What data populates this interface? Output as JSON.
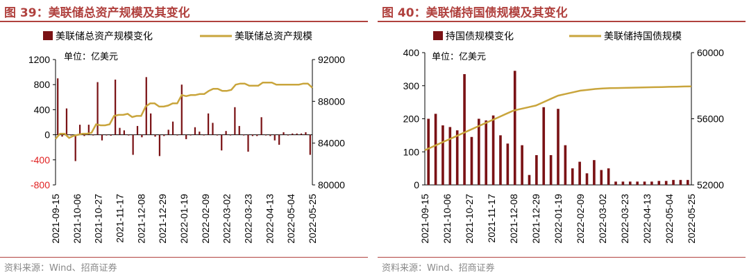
{
  "colors": {
    "bar": "#7a1215",
    "line": "#c9a53c",
    "axis": "#000000",
    "title": "#b0413e",
    "negative_tick": "#e02020"
  },
  "chart_data": [
    {
      "type": "bar+line",
      "title": "图 39：美联储总资产规模及其变化",
      "unit": "单位：亿美元",
      "source": "资料来源：Wind、招商证券",
      "legend": [
        "美联储总资产规模变化",
        "美联储总资产规模"
      ],
      "x_ticks": [
        "2021-09-15",
        "2021-10-06",
        "2021-10-27",
        "2021-11-17",
        "2021-12-08",
        "2021-12-29",
        "2022-01-19",
        "2022-02-09",
        "2022-03-02",
        "2022-03-23",
        "2022-04-13",
        "2022-05-04",
        "2022-05-25"
      ],
      "left_axis": {
        "ylim": [
          -800,
          1200
        ],
        "ticks": [
          "-800",
          "-400",
          "0",
          "400",
          "800",
          "1200"
        ]
      },
      "right_axis": {
        "ylim": [
          80000,
          92000
        ],
        "ticks": [
          "80000",
          "84000",
          "88000",
          "92000"
        ]
      },
      "series": [
        {
          "name": "美联储总资产规模变化",
          "kind": "bar",
          "axis": "left",
          "values": [
            900,
            -30,
            420,
            -10,
            -420,
            160,
            -20,
            160,
            -10,
            840,
            -90,
            -10,
            -15,
            880,
            110,
            70,
            -10,
            -320,
            140,
            -40,
            920,
            340,
            -30,
            -340,
            -20,
            80,
            210,
            -10,
            800,
            -70,
            -10,
            120,
            50,
            -10,
            340,
            190,
            -10,
            -250,
            60,
            -10,
            440,
            140,
            -10,
            -270,
            -20,
            -20,
            280,
            -10,
            -20,
            -90,
            -160,
            40,
            -10,
            20,
            20,
            20,
            40,
            -320
          ]
        },
        {
          "name": "美联储总资产规模",
          "kind": "line",
          "axis": "right",
          "values": [
            84400,
            84900,
            84900,
            84500,
            84700,
            84800,
            84900,
            84900,
            85000,
            85800,
            85700,
            85700,
            85800,
            86600,
            86700,
            86700,
            86800,
            86500,
            86600,
            86600,
            87500,
            87800,
            87800,
            87500,
            87500,
            87600,
            87800,
            87800,
            88600,
            88500,
            88600,
            88600,
            88700,
            88700,
            89000,
            89200,
            89200,
            89000,
            89000,
            89100,
            89600,
            89700,
            89700,
            89500,
            89500,
            89500,
            89800,
            89800,
            89800,
            89600,
            89600,
            89600,
            89600,
            89600,
            89600,
            89700,
            89700,
            89300
          ]
        }
      ]
    },
    {
      "type": "bar+line",
      "title": "图 40：美联储持国债规模及其变化",
      "unit": "单位：亿美元",
      "source": "资料来源：Wind、招商证券",
      "legend": [
        "持国债规模变化",
        "美联储持国债规模"
      ],
      "x_ticks": [
        "2021-09-15",
        "2021-10-06",
        "2021-10-27",
        "2021-11-17",
        "2021-12-08",
        "2021-12-29",
        "2022-01-19",
        "2022-02-09",
        "2022-03-02",
        "2022-03-23",
        "2022-04-13",
        "2022-05-04",
        "2022-05-25"
      ],
      "left_axis": {
        "ylim": [
          0,
          400
        ],
        "ticks": [
          "0",
          "100",
          "200",
          "300",
          "400"
        ]
      },
      "right_axis": {
        "ylim": [
          52000,
          60000
        ],
        "ticks": [
          "52000",
          "56000",
          "60000"
        ]
      },
      "series": [
        {
          "name": "持国债规模变化",
          "kind": "bar",
          "axis": "left",
          "values": [
            200,
            215,
            180,
            175,
            165,
            335,
            145,
            200,
            195,
            210,
            150,
            125,
            345,
            120,
            30,
            90,
            235,
            90,
            230,
            120,
            50,
            70,
            35,
            75,
            45,
            50,
            10,
            10,
            10,
            10,
            10,
            10,
            12,
            12,
            15,
            15,
            15
          ]
        },
        {
          "name": "美联储持国债规模",
          "kind": "line",
          "axis": "right",
          "values": [
            54100,
            54300,
            54500,
            54700,
            54900,
            55100,
            55300,
            55500,
            55700,
            55900,
            56100,
            56300,
            56500,
            56600,
            56700,
            56800,
            57000,
            57200,
            57400,
            57500,
            57600,
            57700,
            57750,
            57800,
            57830,
            57850,
            57860,
            57870,
            57880,
            57890,
            57900,
            57910,
            57920,
            57930,
            57940,
            57950,
            57960
          ]
        }
      ]
    }
  ]
}
